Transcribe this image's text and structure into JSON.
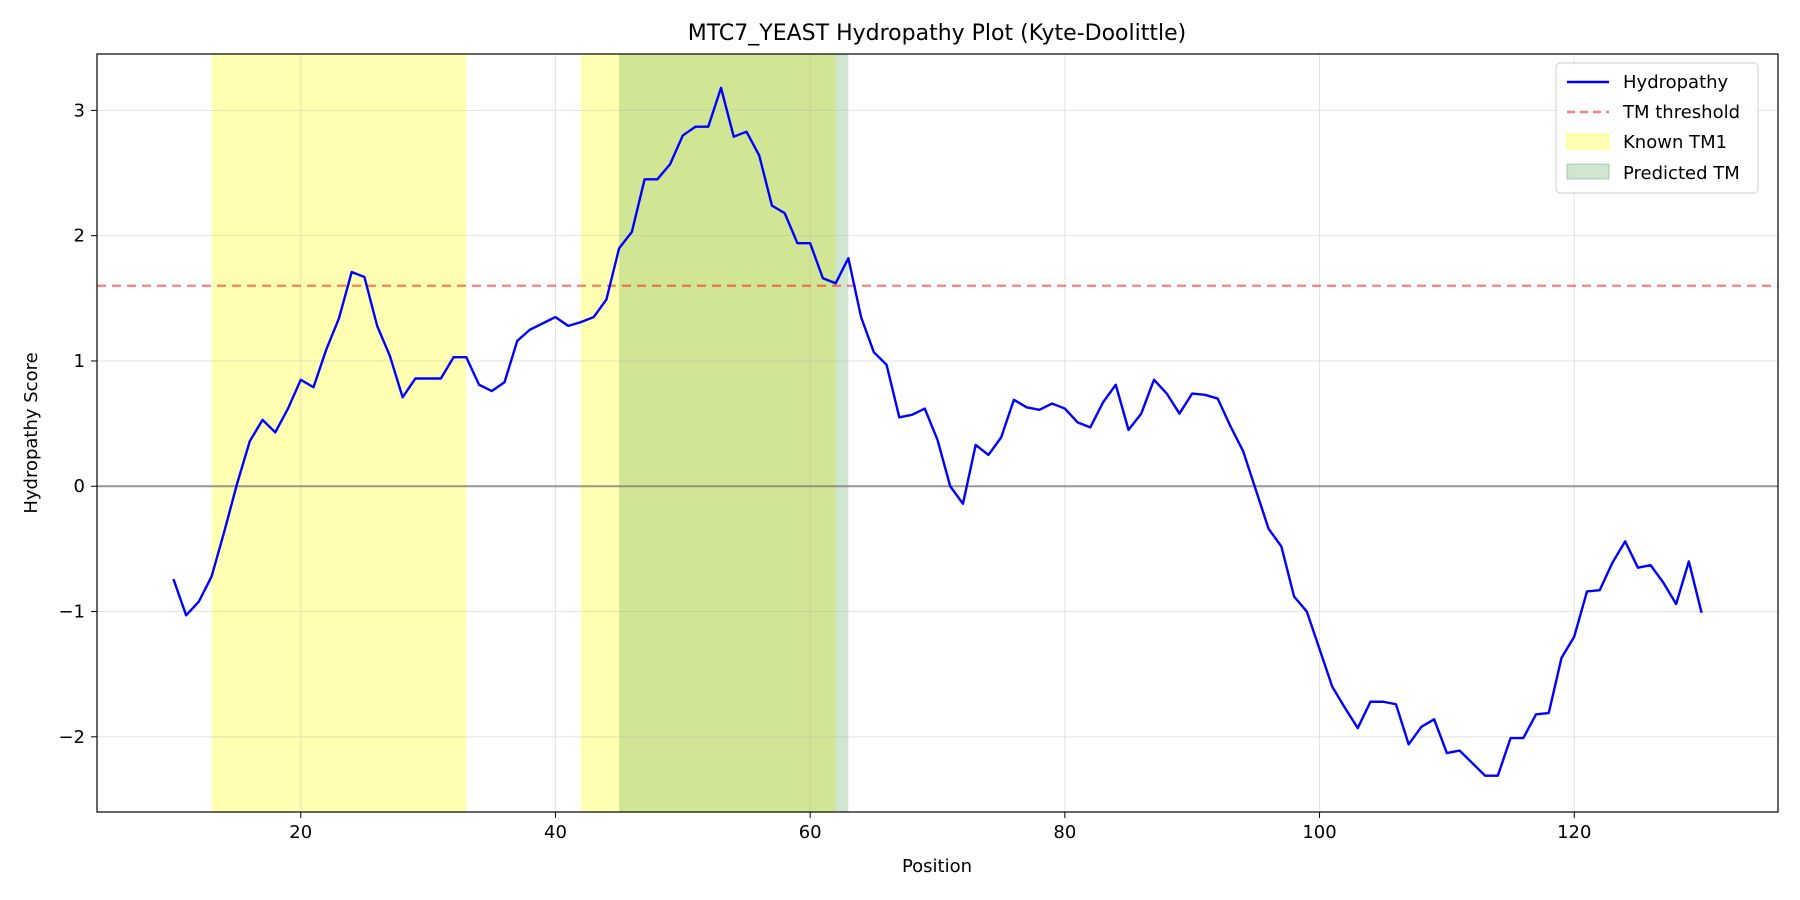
{
  "chart_data": {
    "type": "line",
    "title": "MTC7_YEAST Hydropathy Plot (Kyte-Doolittle)",
    "xlabel": "Position",
    "ylabel": "Hydropathy Score",
    "xlim": [
      4,
      136
    ],
    "ylim": [
      -2.6,
      3.45
    ],
    "xticks": [
      20,
      40,
      60,
      80,
      100,
      120
    ],
    "yticks": [
      -2,
      -1,
      0,
      1,
      2,
      3
    ],
    "ytick_labels": [
      "−2",
      "−1",
      "0",
      "1",
      "2",
      "3"
    ],
    "grid": true,
    "legend_position": "top-right",
    "series": [
      {
        "name": "Hydropathy",
        "color": "#0000ff",
        "x": [
          10,
          11,
          12,
          13,
          14,
          15,
          16,
          17,
          18,
          19,
          20,
          21,
          22,
          23,
          24,
          25,
          26,
          27,
          28,
          29,
          30,
          31,
          32,
          33,
          34,
          35,
          36,
          37,
          38,
          39,
          40,
          41,
          42,
          43,
          44,
          45,
          46,
          47,
          48,
          49,
          50,
          51,
          52,
          53,
          54,
          55,
          56,
          57,
          58,
          59,
          60,
          61,
          62,
          63,
          64,
          65,
          66,
          67,
          68,
          69,
          70,
          71,
          72,
          73,
          74,
          75,
          76,
          77,
          78,
          79,
          80,
          81,
          82,
          83,
          84,
          85,
          86,
          87,
          88,
          89,
          90,
          91,
          92,
          93,
          94,
          95,
          96,
          97,
          98,
          99,
          100,
          101,
          102,
          103,
          104,
          105,
          106,
          107,
          108,
          109,
          110,
          111,
          112,
          113,
          114,
          115,
          116,
          117,
          118,
          119,
          120,
          121,
          122,
          123,
          124,
          125,
          126,
          127,
          128,
          129,
          130
        ],
        "y": [
          -0.74,
          -1.03,
          -0.92,
          -0.72,
          -0.36,
          0.02,
          0.36,
          0.53,
          0.43,
          0.62,
          0.85,
          0.79,
          1.09,
          1.34,
          1.71,
          1.67,
          1.28,
          1.04,
          0.71,
          0.86,
          0.86,
          0.86,
          1.03,
          1.03,
          0.81,
          0.76,
          0.83,
          1.16,
          1.25,
          1.3,
          1.35,
          1.28,
          1.31,
          1.35,
          1.49,
          1.9,
          2.03,
          2.45,
          2.45,
          2.57,
          2.8,
          2.87,
          2.87,
          3.18,
          2.79,
          2.83,
          2.64,
          2.24,
          2.18,
          1.94,
          1.94,
          1.66,
          1.62,
          1.82,
          1.35,
          1.07,
          0.97,
          0.55,
          0.57,
          0.62,
          0.37,
          0.0,
          -0.14,
          0.33,
          0.25,
          0.39,
          0.69,
          0.63,
          0.61,
          0.66,
          0.62,
          0.51,
          0.47,
          0.67,
          0.81,
          0.45,
          0.58,
          0.85,
          0.74,
          0.58,
          0.74,
          0.73,
          0.7,
          0.48,
          0.28,
          -0.03,
          -0.34,
          -0.48,
          -0.88,
          -1.0,
          -1.3,
          -1.6,
          -1.77,
          -1.93,
          -1.72,
          -1.72,
          -1.74,
          -2.06,
          -1.92,
          -1.86,
          -2.13,
          -2.11,
          -2.21,
          -2.31,
          -2.31,
          -2.01,
          -2.01,
          -1.82,
          -1.81,
          -1.37,
          -1.2,
          -0.84,
          -0.83,
          -0.61,
          -0.44,
          -0.65,
          -0.63,
          -0.77,
          -0.94,
          -0.6,
          -1.01
        ]
      }
    ],
    "threshold": {
      "name": "TM threshold",
      "value": 1.6,
      "color": "#ff0000"
    },
    "regions": [
      {
        "name": "Known TM1",
        "color": "#ffff00",
        "spans": [
          [
            13,
            33
          ],
          [
            42,
            62
          ]
        ]
      },
      {
        "name": "Predicted TM",
        "color": "#2e8b2e",
        "spans": [
          [
            45,
            63
          ]
        ]
      }
    ],
    "zero_line_color": "#808080"
  }
}
